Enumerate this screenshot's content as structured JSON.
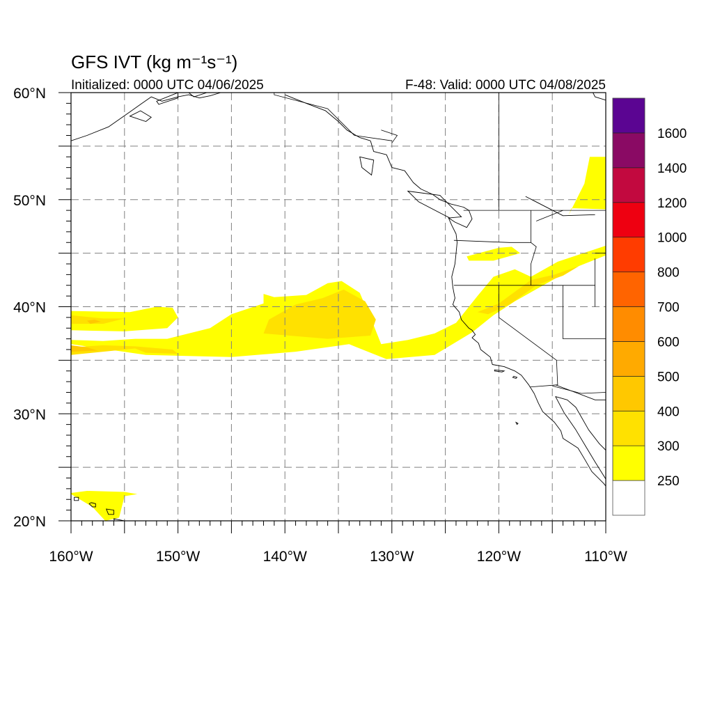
{
  "map": {
    "title": "GFS IVT (kg m⁻¹s⁻¹)",
    "initialized": "Initialized: 0000 UTC 04/06/2025",
    "valid": "F-48: Valid: 0000 UTC 04/08/2025",
    "extent": {
      "lon": [
        -160,
        -110
      ],
      "lat": [
        20,
        60
      ]
    },
    "grid_dashed": true,
    "lon_ticks": [
      {
        "value": -160,
        "label": "160°W"
      },
      {
        "value": -150,
        "label": "150°W"
      },
      {
        "value": -140,
        "label": "140°W"
      },
      {
        "value": -130,
        "label": "130°W"
      },
      {
        "value": -120,
        "label": "120°W"
      },
      {
        "value": -110,
        "label": "110°W"
      }
    ],
    "lat_ticks": [
      {
        "value": 20,
        "label": "20°N"
      },
      {
        "value": 30,
        "label": "30°N"
      },
      {
        "value": 40,
        "label": "40°N"
      },
      {
        "value": 50,
        "label": "50°N"
      },
      {
        "value": 60,
        "label": "60°N"
      }
    ],
    "colors": {
      "ivt_250": "#ffff00",
      "ivt_300": "#ffe100",
      "ivt_400": "#ffc800",
      "coastline": "#000000",
      "grid": "#808080"
    },
    "ivt_regions": [
      {
        "level": 250,
        "points": [
          [
            -160,
            36.5
          ],
          [
            -153,
            35.5
          ],
          [
            -145,
            35.3
          ],
          [
            -139,
            35.8
          ],
          [
            -134,
            36.5
          ],
          [
            -130.5,
            35.1
          ],
          [
            -126,
            35.5
          ],
          [
            -122.5,
            37.6
          ],
          [
            -120.5,
            39.2
          ],
          [
            -118.5,
            40.5
          ],
          [
            -115.5,
            42.2
          ],
          [
            -113,
            43.6
          ],
          [
            -111,
            44.4
          ],
          [
            -110,
            44.8
          ],
          [
            -110,
            45.7
          ],
          [
            -111.5,
            45.2
          ],
          [
            -114.5,
            44.2
          ],
          [
            -117,
            42.8
          ],
          [
            -118.5,
            43.5
          ],
          [
            -120.5,
            42.8
          ],
          [
            -122,
            41
          ],
          [
            -124,
            38.5
          ],
          [
            -126,
            37.5
          ],
          [
            -128.5,
            36.9
          ],
          [
            -131,
            36.5
          ],
          [
            -131.8,
            38.5
          ],
          [
            -133,
            41.3
          ],
          [
            -134.7,
            42.4
          ],
          [
            -136,
            42.2
          ],
          [
            -138,
            41.1
          ],
          [
            -141,
            40.9
          ],
          [
            -142,
            41.2
          ],
          [
            -142,
            40.3
          ],
          [
            -145,
            39.3
          ],
          [
            -147,
            38
          ],
          [
            -151,
            37
          ],
          [
            -154,
            37
          ],
          [
            -157,
            36.8
          ],
          [
            -160,
            36.9
          ]
        ]
      },
      {
        "level": 250,
        "points": [
          [
            -160,
            39.6
          ],
          [
            -154.5,
            39.5
          ],
          [
            -152,
            40
          ],
          [
            -150.5,
            39.9
          ],
          [
            -150,
            39
          ],
          [
            -151,
            38
          ],
          [
            -155,
            37.7
          ],
          [
            -160,
            37.8
          ]
        ]
      },
      {
        "level": 250,
        "points": [
          [
            -113.5,
            48.5
          ],
          [
            -112,
            51.5
          ],
          [
            -111.5,
            54
          ],
          [
            -110,
            54
          ],
          [
            -110,
            49.1
          ],
          [
            -113.2,
            49.2
          ]
        ]
      },
      {
        "level": 250,
        "points": [
          [
            -160,
            22.5
          ],
          [
            -158,
            21.3
          ],
          [
            -156.8,
            20
          ],
          [
            -155.5,
            20.3
          ],
          [
            -155,
            22.3
          ],
          [
            -153.8,
            22.5
          ],
          [
            -155,
            22.7
          ],
          [
            -158.5,
            22.8
          ],
          [
            -160,
            22.6
          ]
        ]
      },
      {
        "level": 250,
        "points": [
          [
            -123,
            44.7
          ],
          [
            -120,
            45.5
          ],
          [
            -118.8,
            45.6
          ],
          [
            -118,
            45
          ],
          [
            -120.5,
            44.3
          ],
          [
            -122.8,
            44.3
          ]
        ]
      },
      {
        "level": 300,
        "points": [
          [
            -160,
            35.5
          ],
          [
            -157,
            35.8
          ],
          [
            -154,
            36.1
          ],
          [
            -153,
            35.7
          ],
          [
            -150,
            35.6
          ],
          [
            -150.5,
            36
          ],
          [
            -154,
            36.3
          ],
          [
            -157,
            36.4
          ],
          [
            -160,
            36.2
          ]
        ]
      },
      {
        "level": 300,
        "points": [
          [
            -142,
            37.5
          ],
          [
            -136,
            37
          ],
          [
            -132,
            37.3
          ],
          [
            -131.5,
            38.8
          ],
          [
            -132.5,
            40.5
          ],
          [
            -134.5,
            41.6
          ],
          [
            -136.5,
            40.8
          ],
          [
            -139,
            40.2
          ],
          [
            -141.5,
            38.8
          ]
        ]
      },
      {
        "level": 300,
        "points": [
          [
            -122,
            39.5
          ],
          [
            -120,
            40.3
          ],
          [
            -117,
            42.5
          ],
          [
            -114.8,
            43
          ],
          [
            -112.5,
            43.8
          ],
          [
            -114,
            42.9
          ],
          [
            -116.5,
            42
          ],
          [
            -119,
            40.2
          ],
          [
            -121,
            39.3
          ]
        ]
      },
      {
        "level": 300,
        "points": [
          [
            -160,
            39.2
          ],
          [
            -157,
            38.9
          ],
          [
            -155,
            38.9
          ],
          [
            -157,
            38.4
          ],
          [
            -160,
            38.4
          ]
        ]
      },
      {
        "level": 400,
        "points": [
          [
            -160,
            36.4
          ],
          [
            -158.5,
            36.2
          ],
          [
            -157.5,
            35.9
          ],
          [
            -160,
            35.8
          ]
        ]
      },
      {
        "level": 400,
        "points": [
          [
            -158.5,
            38.7
          ],
          [
            -157.8,
            38.8
          ],
          [
            -157.2,
            38.6
          ],
          [
            -158.2,
            38.4
          ]
        ]
      }
    ],
    "coastlines": [
      [
        [
          -132,
          55.5
        ],
        [
          -131.7,
          54.5
        ],
        [
          -130.5,
          54.2
        ],
        [
          -130,
          53
        ],
        [
          -128.8,
          52.7
        ],
        [
          -128,
          51.6
        ],
        [
          -127.3,
          51
        ],
        [
          -126.2,
          50.5
        ],
        [
          -125.5,
          50
        ],
        [
          -124.5,
          49.6
        ],
        [
          -123.3,
          49.3
        ],
        [
          -122.8,
          49
        ],
        [
          -122.5,
          48.2
        ],
        [
          -123,
          47.4
        ],
        [
          -124.1,
          47.9
        ],
        [
          -124.7,
          48.3
        ],
        [
          -124.4,
          47.6
        ],
        [
          -124,
          46.8
        ],
        [
          -123.9,
          46
        ],
        [
          -124,
          45
        ],
        [
          -124.1,
          44
        ],
        [
          -124.4,
          42.8
        ],
        [
          -124.3,
          41.8
        ],
        [
          -124.1,
          40.8
        ],
        [
          -124.3,
          40.2
        ],
        [
          -123.7,
          39.5
        ],
        [
          -123.5,
          38.8
        ],
        [
          -122.8,
          38
        ],
        [
          -122.5,
          37.8
        ],
        [
          -122.2,
          37.4
        ],
        [
          -122.5,
          37.1
        ],
        [
          -121.9,
          36.6
        ],
        [
          -121.7,
          36
        ],
        [
          -120.8,
          35.3
        ],
        [
          -120.6,
          34.6
        ],
        [
          -119.5,
          34.4
        ],
        [
          -118.5,
          34
        ],
        [
          -117.9,
          33.6
        ],
        [
          -117.2,
          32.7
        ],
        [
          -116.7,
          31.9
        ],
        [
          -116.3,
          31
        ],
        [
          -115.9,
          30.2
        ],
        [
          -114.8,
          29.2
        ],
        [
          -114.2,
          28.4
        ],
        [
          -114,
          27.7
        ],
        [
          -112.6,
          26.8
        ],
        [
          -112,
          25.8
        ],
        [
          -111.3,
          24.6
        ],
        [
          -110.2,
          23.5
        ],
        [
          -109.8,
          23
        ]
      ],
      [
        [
          -110,
          23.9
        ],
        [
          -111,
          25.5
        ],
        [
          -111.9,
          27
        ],
        [
          -112.8,
          28.5
        ],
        [
          -113.9,
          30.1
        ],
        [
          -114.7,
          31.6
        ],
        [
          -113.6,
          31.3
        ],
        [
          -112.8,
          30.6
        ],
        [
          -111.6,
          28.5
        ],
        [
          -110.6,
          27.2
        ],
        [
          -110,
          26.6
        ]
      ],
      [
        [
          -146,
          60
        ],
        [
          -147,
          59.7
        ],
        [
          -148,
          59.5
        ],
        [
          -149,
          59.8
        ],
        [
          -150,
          59.6
        ],
        [
          -151.5,
          59.2
        ],
        [
          -152.5,
          59.6
        ],
        [
          -153.5,
          58.9
        ],
        [
          -154.5,
          58.2
        ],
        [
          -156.5,
          56.8
        ],
        [
          -158.5,
          56
        ],
        [
          -160,
          55.5
        ]
      ],
      [
        [
          -149,
          60
        ],
        [
          -148.5,
          59.6
        ],
        [
          -147.3,
          60
        ]
      ],
      [
        [
          -140,
          59.8
        ],
        [
          -138,
          59
        ],
        [
          -136.2,
          58.3
        ],
        [
          -135,
          57.3
        ],
        [
          -134.2,
          56.5
        ],
        [
          -133,
          55.8
        ],
        [
          -132,
          55.5
        ]
      ],
      [
        [
          -110,
          59.3
        ],
        [
          -111,
          59.6
        ],
        [
          -111.2,
          60
        ]
      ],
      [
        [
          -117.5,
          50.3
        ],
        [
          -114,
          48.5
        ],
        [
          -111,
          48.6
        ]
      ]
    ],
    "islands": [
      [
        [
          -158.3,
          21.6
        ],
        [
          -158,
          21.3
        ],
        [
          -157.7,
          21.3
        ],
        [
          -157.7,
          21.6
        ],
        [
          -158.1,
          21.7
        ]
      ],
      [
        [
          -159.7,
          22.2
        ],
        [
          -159.3,
          22.2
        ],
        [
          -159.3,
          21.9
        ],
        [
          -159.7,
          21.9
        ]
      ],
      [
        [
          -156.7,
          21.1
        ],
        [
          -156,
          21
        ],
        [
          -156,
          20.6
        ],
        [
          -156.5,
          20.6
        ]
      ],
      [
        [
          -156,
          20.2
        ],
        [
          -155,
          20
        ],
        [
          -154.8,
          19.6
        ],
        [
          -155.8,
          19.5
        ]
      ],
      [
        [
          -133,
          54
        ],
        [
          -131.7,
          53.7
        ],
        [
          -131.9,
          52.3
        ],
        [
          -132.8,
          53
        ]
      ],
      [
        [
          -128.5,
          50.8
        ],
        [
          -125.5,
          50.4
        ],
        [
          -123.5,
          48.4
        ],
        [
          -124.6,
          48.3
        ],
        [
          -127.5,
          49.8
        ]
      ],
      [
        [
          -118.6,
          33.5
        ],
        [
          -118.3,
          33.4
        ],
        [
          -118.4,
          33.3
        ],
        [
          -118.7,
          33.4
        ]
      ],
      [
        [
          -120.4,
          34.1
        ],
        [
          -119.5,
          34
        ],
        [
          -119.7,
          33.9
        ],
        [
          -120.4,
          34
        ]
      ],
      [
        [
          -118.4,
          29.2
        ],
        [
          -118.2,
          29.1
        ],
        [
          -118.3,
          29.0
        ]
      ],
      [
        [
          -150,
          60
        ],
        [
          -152,
          59.2
        ],
        [
          -151.8,
          58.9
        ],
        [
          -150,
          59.5
        ]
      ],
      [
        [
          -154.5,
          57.8
        ],
        [
          -153,
          57.3
        ],
        [
          -152.5,
          57.7
        ],
        [
          -153.5,
          58.3
        ]
      ]
    ],
    "borders": [
      [
        [
          -123.3,
          49
        ],
        [
          -110,
          49
        ]
      ],
      [
        [
          -124.2,
          46.2
        ],
        [
          -119,
          46
        ],
        [
          -117,
          46
        ]
      ],
      [
        [
          -117,
          49
        ],
        [
          -117,
          46
        ],
        [
          -116.5,
          45.6
        ],
        [
          -117,
          44
        ],
        [
          -117,
          42
        ]
      ],
      [
        [
          -124.2,
          42
        ],
        [
          -111,
          42
        ],
        [
          -111,
          40
        ]
      ],
      [
        [
          -120,
          42
        ],
        [
          -120,
          39
        ],
        [
          -114.6,
          35
        ],
        [
          -114.5,
          32.7
        ],
        [
          -117.1,
          32.5
        ]
      ],
      [
        [
          -114,
          42
        ],
        [
          -114,
          37
        ],
        [
          -110,
          37
        ]
      ],
      [
        [
          -114.7,
          32.7
        ],
        [
          -111,
          31.3
        ],
        [
          -110,
          31.3
        ]
      ],
      [
        [
          -116.5,
          48
        ],
        [
          -114,
          49
        ]
      ],
      [
        [
          -115,
          32.6
        ],
        [
          -112.3,
          31.9
        ],
        [
          -110,
          32
        ]
      ],
      [
        [
          -111,
          45
        ],
        [
          -110,
          45
        ]
      ],
      [
        [
          -111,
          44.5
        ],
        [
          -111,
          42
        ]
      ],
      [
        [
          -141,
          60
        ],
        [
          -141,
          59.8
        ],
        [
          -136,
          58.5
        ],
        [
          -133.5,
          56
        ],
        [
          -130,
          55.5
        ]
      ],
      [
        [
          -130,
          55.3
        ],
        [
          -129.5,
          56
        ],
        [
          -131,
          56.5
        ]
      ],
      [
        [
          -120,
          60
        ],
        [
          -120,
          49
        ]
      ]
    ],
    "colorbar": {
      "levels": [
        250,
        300,
        400,
        500,
        600,
        700,
        800,
        1000,
        1200,
        1400,
        1600
      ],
      "labels": [
        "250",
        "300",
        "400",
        "500",
        "600",
        "700",
        "800",
        "1000",
        "1200",
        "1400",
        "1600"
      ],
      "colors": [
        "#ffffff",
        "#ffff00",
        "#ffe100",
        "#ffc800",
        "#ffaa00",
        "#ff8c00",
        "#ff6400",
        "#ff3c00",
        "#ee0011",
        "#c2093f",
        "#8a0a64",
        "#5b0592"
      ]
    }
  }
}
